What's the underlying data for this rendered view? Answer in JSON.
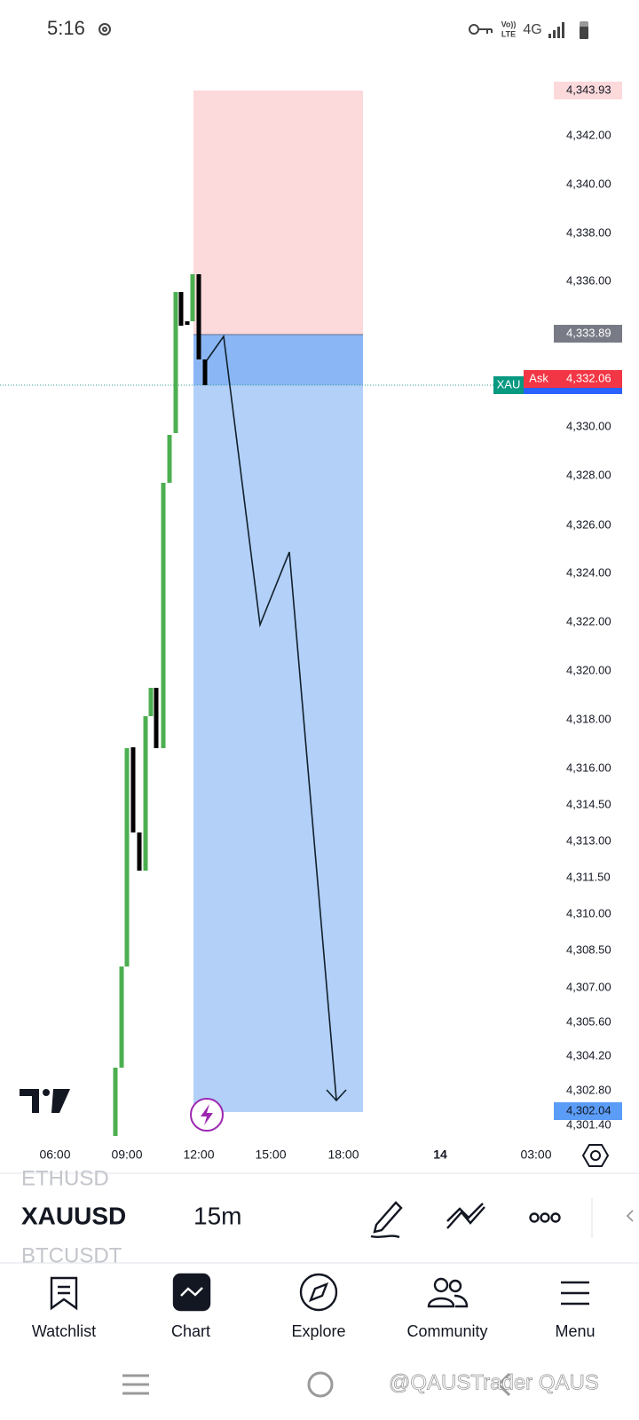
{
  "status_bar": {
    "time": "5:16",
    "volte": [
      "Vo))",
      "LTE"
    ],
    "network": "4G"
  },
  "price_axis": {
    "labels": [
      "4,342.00",
      "4,340.00",
      "4,338.00",
      "4,336.00",
      "4,330.00",
      "4,328.00",
      "4,326.00",
      "4,324.00",
      "4,322.00",
      "4,320.00",
      "4,318.00",
      "4,316.00",
      "4,314.50",
      "4,313.00",
      "4,311.50",
      "4,310.00",
      "4,308.50",
      "4,307.00",
      "4,305.60",
      "4,304.20",
      "4,302.80",
      "4,301.40"
    ]
  },
  "markers": {
    "stop": "4,343.93",
    "entry": "4,333.89",
    "ask_symbol": "XAU",
    "ask_label": "Ask",
    "ask_price": "4,332.06",
    "target": "4,302.04"
  },
  "time_axis": {
    "labels": [
      "06:00",
      "09:00",
      "12:00",
      "15:00",
      "18:00",
      "14",
      "03:00"
    ]
  },
  "symbol_bar": {
    "previous": "ETHUSD",
    "symbol": "XAUUSD",
    "interval": "15m",
    "next": "BTCUSDT"
  },
  "nav": {
    "items": [
      "Watchlist",
      "Chart",
      "Explore",
      "Community",
      "Menu"
    ]
  },
  "watermark": "@QAUSTrader QAUS"
}
